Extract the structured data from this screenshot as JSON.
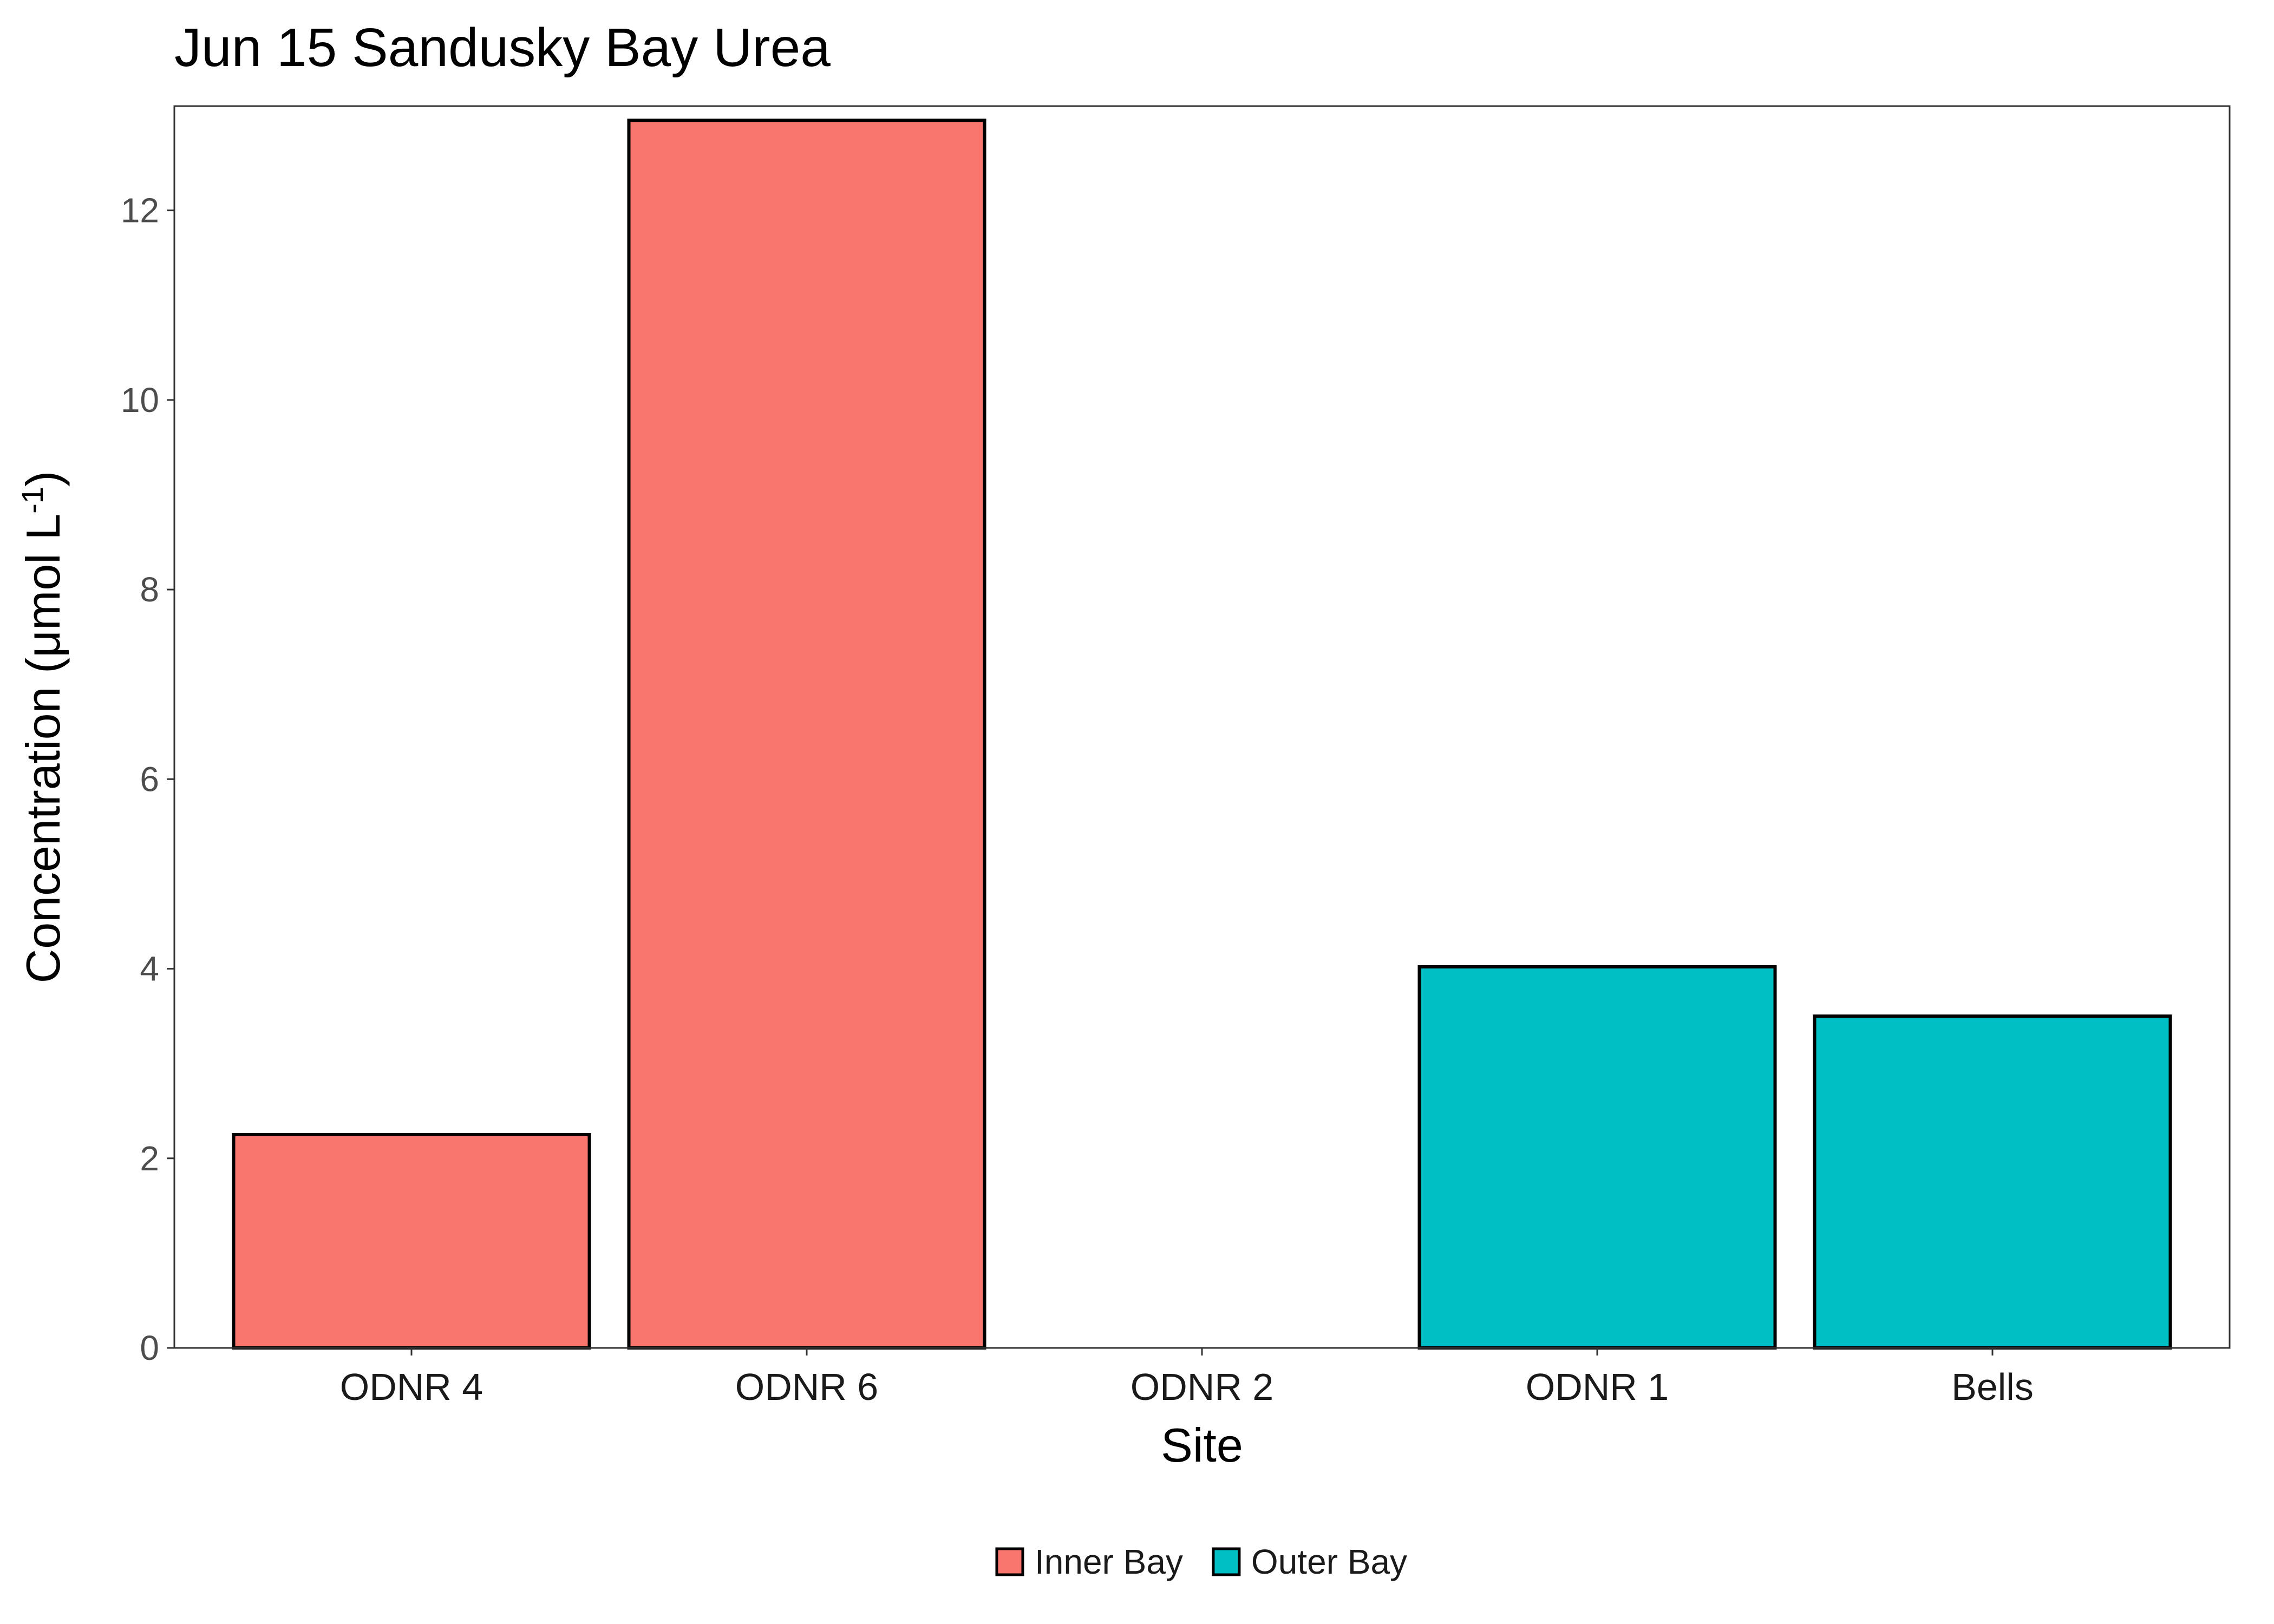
{
  "chart_data": {
    "type": "bar",
    "title": "Jun 15 Sandusky Bay Urea",
    "xlabel": "Site",
    "ylabel": "Concentration (μmol L⁻¹)",
    "ylabel_parts": {
      "main": "Concentration (μmol L",
      "sup": "-1",
      "close": ")"
    },
    "categories": [
      "ODNR 4",
      "ODNR 6",
      "ODNR 2",
      "ODNR 1",
      "Bells"
    ],
    "values": [
      2.25,
      12.95,
      0,
      4.02,
      3.5
    ],
    "groups": [
      "Inner Bay",
      "Inner Bay",
      "Inner Bay",
      "Outer Bay",
      "Outer Bay"
    ],
    "ylim": [
      0,
      13.1
    ],
    "yticks": [
      0,
      2,
      4,
      6,
      8,
      10,
      12
    ],
    "grid": false,
    "legend": {
      "position": "bottom",
      "entries": [
        {
          "label": "Inner Bay",
          "color": "#F8766D"
        },
        {
          "label": "Outer Bay",
          "color": "#00BFC4"
        }
      ]
    },
    "colors": {
      "Inner Bay": "#F8766D",
      "Outer Bay": "#00BFC4"
    }
  }
}
